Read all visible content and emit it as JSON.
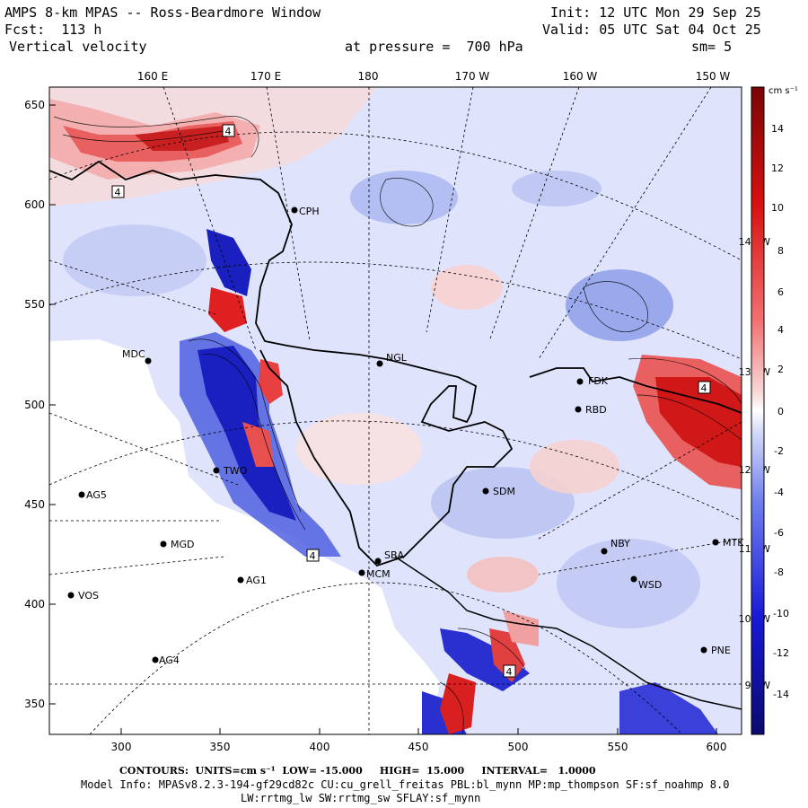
{
  "header": {
    "title": "AMPS 8-km MPAS -- Ross-Beardmore Window",
    "init": "Init: 12 UTC Mon 29 Sep 25",
    "fcst": "Fcst:  113 h",
    "valid": "Valid: 05 UTC Sat 04 Oct 25",
    "field": "Vertical velocity",
    "level": "at pressure =  700 hPa",
    "smooth": "sm= 5"
  },
  "axes": {
    "x_ticks": [
      "300",
      "350",
      "400",
      "450",
      "500",
      "550",
      "600"
    ],
    "y_ticks": [
      "350",
      "400",
      "450",
      "500",
      "550",
      "600",
      "650"
    ],
    "lon_labels_top": [
      "160 E",
      "170 E",
      "180",
      "170 W",
      "160 W",
      "150 W"
    ],
    "lon_labels_right": [
      "140 W",
      "130 W",
      "120 W",
      "110 W",
      "100 W",
      "90 W"
    ]
  },
  "colorbar": {
    "units": "cm s⁻¹",
    "ticks": [
      "14",
      "12",
      "10",
      "8",
      "6",
      "4",
      "2",
      "0",
      "-2",
      "-4",
      "-6",
      "-8",
      "-10",
      "-12",
      "-14"
    ],
    "colors": {
      "max_red": "#8a0a0a",
      "red": "#e01010",
      "light_red": "#f6c6c6",
      "white": "#ffffff",
      "light_blue": "#c8d0f4",
      "blue": "#1818d8",
      "max_blue": "#0a0a78"
    }
  },
  "stations": [
    {
      "name": "CPH"
    },
    {
      "name": "MDC"
    },
    {
      "name": "NGL"
    },
    {
      "name": "FDK"
    },
    {
      "name": "RBD"
    },
    {
      "name": "TWO"
    },
    {
      "name": "SDM"
    },
    {
      "name": "AG5"
    },
    {
      "name": "MGD"
    },
    {
      "name": "NBY"
    },
    {
      "name": "MTK"
    },
    {
      "name": "AG1"
    },
    {
      "name": "WSD"
    },
    {
      "name": "VOS"
    },
    {
      "name": "PNE"
    },
    {
      "name": "AG4"
    },
    {
      "name": "SBA"
    },
    {
      "name": "MCM"
    }
  ],
  "footer": {
    "contours": "CONTOURS:  UNITS=cm s⁻¹  LOW= -15.000     HIGH=  15.000     INTERVAL=   1.0000",
    "model_info": "Model Info: MPASv8.2.3-194-gf29cd82c CU:cu_grell_freitas PBL:bl_mynn MP:mp_thompson SF:sf_noahmp 8.0",
    "model_info2": "LW:rrtmg_lw SW:rrtmg_sw SFLAY:sf_mynn"
  }
}
